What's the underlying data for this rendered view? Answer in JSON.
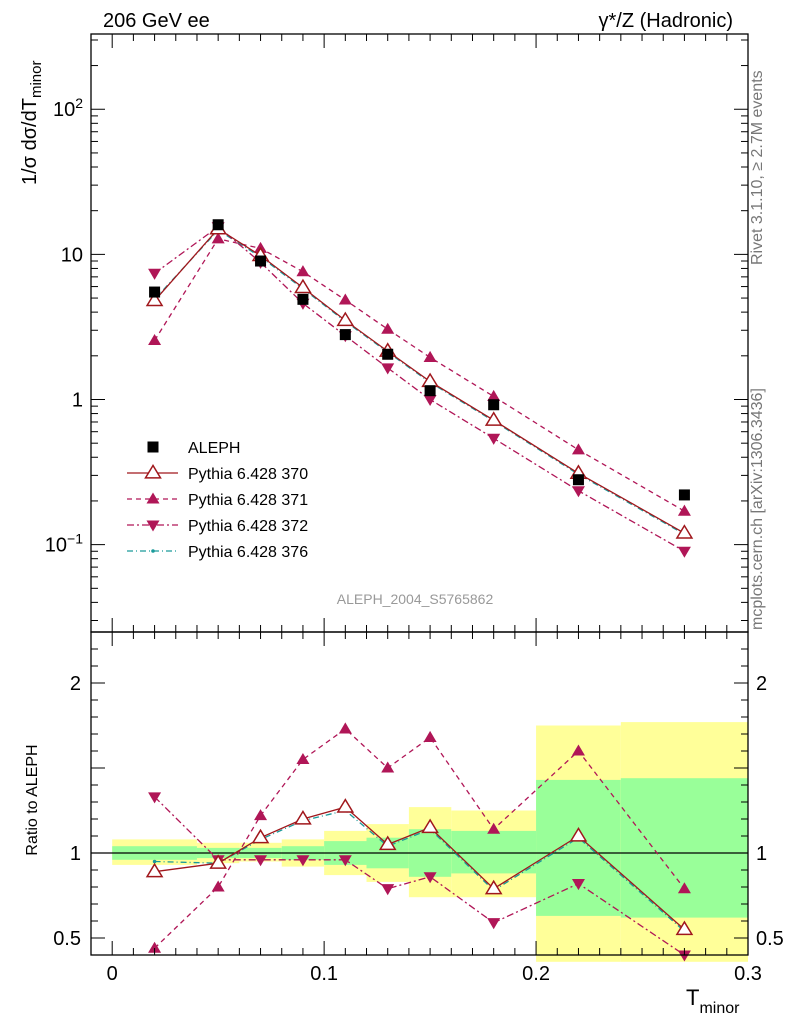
{
  "header": {
    "left": "206 GeV ee",
    "right": "γ*/Z (Hadronic)"
  },
  "side_labels": {
    "rivet": "Rivet 3.1.10, ≥ 2.7M events",
    "mcplots": "mcplots.cern.ch [arXiv:1306.3436]"
  },
  "analysis_id": "ALEPH_2004_S5765862",
  "chart_data": [
    {
      "type": "line",
      "panel": "main",
      "ylabel": "1/σ dσ/dT_minor",
      "yscale": "log",
      "ylim": [
        0.025,
        330
      ],
      "xlim": [
        -0.01,
        0.3
      ],
      "x": [
        0.02,
        0.05,
        0.07,
        0.09,
        0.11,
        0.13,
        0.15,
        0.18,
        0.22,
        0.27
      ],
      "series": [
        {
          "name": "ALEPH",
          "marker": "square",
          "color": "#000000",
          "line": "none",
          "values": [
            5.5,
            16.0,
            9.0,
            4.9,
            2.8,
            2.05,
            1.15,
            0.92,
            0.28,
            0.22
          ]
        },
        {
          "name": "Pythia 6.428 370",
          "marker": "triangle-up-open",
          "color": "#a0171c",
          "line": "solid",
          "values": [
            4.8,
            15.0,
            9.8,
            5.9,
            3.5,
            2.15,
            1.33,
            0.72,
            0.31,
            0.12
          ]
        },
        {
          "name": "Pythia 6.428 371",
          "marker": "triangle-up",
          "color": "#b01657",
          "line": "dashed",
          "values": [
            2.55,
            12.8,
            11.0,
            7.6,
            4.85,
            3.05,
            1.95,
            1.05,
            0.45,
            0.17
          ]
        },
        {
          "name": "Pythia 6.428 372",
          "marker": "triangle-down",
          "color": "#b01657",
          "line": "dashdot",
          "values": [
            7.4,
            15.5,
            8.8,
            4.6,
            2.75,
            1.65,
            1.0,
            0.54,
            0.235,
            0.09
          ]
        },
        {
          "name": "Pythia 6.428 376",
          "marker": "dot",
          "color": "#1a9a9a",
          "line": "dashdotted",
          "values": [
            4.9,
            14.7,
            9.6,
            5.8,
            3.45,
            2.12,
            1.31,
            0.71,
            0.305,
            0.118
          ]
        }
      ],
      "yticks": [
        {
          "label": "10",
          "sup": "−1",
          "value": 0.1
        },
        {
          "label": "1",
          "sup": "",
          "value": 1
        },
        {
          "label": "10",
          "sup": "",
          "value": 10
        },
        {
          "label": "10",
          "sup": "2",
          "value": 100
        }
      ]
    },
    {
      "type": "line",
      "panel": "ratio",
      "xlabel": "T_minor",
      "ylabel": "Ratio to ALEPH",
      "ylim": [
        0.4,
        2.3
      ],
      "xlim": [
        -0.01,
        0.3
      ],
      "x": [
        0.02,
        0.05,
        0.07,
        0.09,
        0.11,
        0.13,
        0.15,
        0.18,
        0.22,
        0.27
      ],
      "bands": {
        "bins": [
          0.0,
          0.04,
          0.06,
          0.08,
          0.1,
          0.12,
          0.14,
          0.16,
          0.2,
          0.24,
          0.3
        ],
        "yellow": [
          [
            0.93,
            1.08
          ],
          [
            0.94,
            1.06
          ],
          [
            0.95,
            1.06
          ],
          [
            0.92,
            1.08
          ],
          [
            0.87,
            1.13
          ],
          [
            0.83,
            1.17
          ],
          [
            0.74,
            1.27
          ],
          [
            0.74,
            1.25
          ],
          [
            0.36,
            1.75
          ],
          [
            0.36,
            1.77
          ]
        ],
        "green": [
          [
            0.96,
            1.04
          ],
          [
            0.97,
            1.03
          ],
          [
            0.97,
            1.03
          ],
          [
            0.96,
            1.04
          ],
          [
            0.93,
            1.07
          ],
          [
            0.91,
            1.09
          ],
          [
            0.86,
            1.14
          ],
          [
            0.88,
            1.13
          ],
          [
            0.63,
            1.43
          ],
          [
            0.62,
            1.44
          ]
        ]
      },
      "series": [
        {
          "name": "Pythia 6.428 370",
          "marker": "triangle-up-open",
          "color": "#a0171c",
          "line": "solid",
          "values": [
            0.89,
            0.94,
            1.09,
            1.2,
            1.27,
            1.05,
            1.15,
            0.79,
            1.1,
            0.55
          ]
        },
        {
          "name": "Pythia 6.428 371",
          "marker": "triangle-up",
          "color": "#b01657",
          "line": "dashed",
          "values": [
            0.44,
            0.8,
            1.22,
            1.55,
            1.73,
            1.5,
            1.68,
            1.14,
            1.6,
            0.79
          ]
        },
        {
          "name": "Pythia 6.428 372",
          "marker": "triangle-down",
          "color": "#b01657",
          "line": "dashdot",
          "values": [
            1.33,
            0.96,
            0.96,
            0.96,
            0.96,
            0.79,
            0.86,
            0.59,
            0.82,
            0.4
          ]
        },
        {
          "name": "Pythia 6.428 376",
          "marker": "dot",
          "color": "#1a9a9a",
          "line": "dashdotted",
          "values": [
            0.95,
            0.94,
            1.08,
            1.19,
            1.25,
            1.04,
            1.14,
            0.78,
            1.09,
            0.54
          ]
        }
      ],
      "yticks": [
        {
          "label": "0.5",
          "value": 0.5
        },
        {
          "label": "1",
          "value": 1
        },
        {
          "label": "2",
          "value": 2
        }
      ],
      "xticks": [
        {
          "label": "0",
          "value": 0
        },
        {
          "label": "0.1",
          "value": 0.1
        },
        {
          "label": "0.2",
          "value": 0.2
        },
        {
          "label": "0.3",
          "value": 0.3
        }
      ]
    }
  ]
}
